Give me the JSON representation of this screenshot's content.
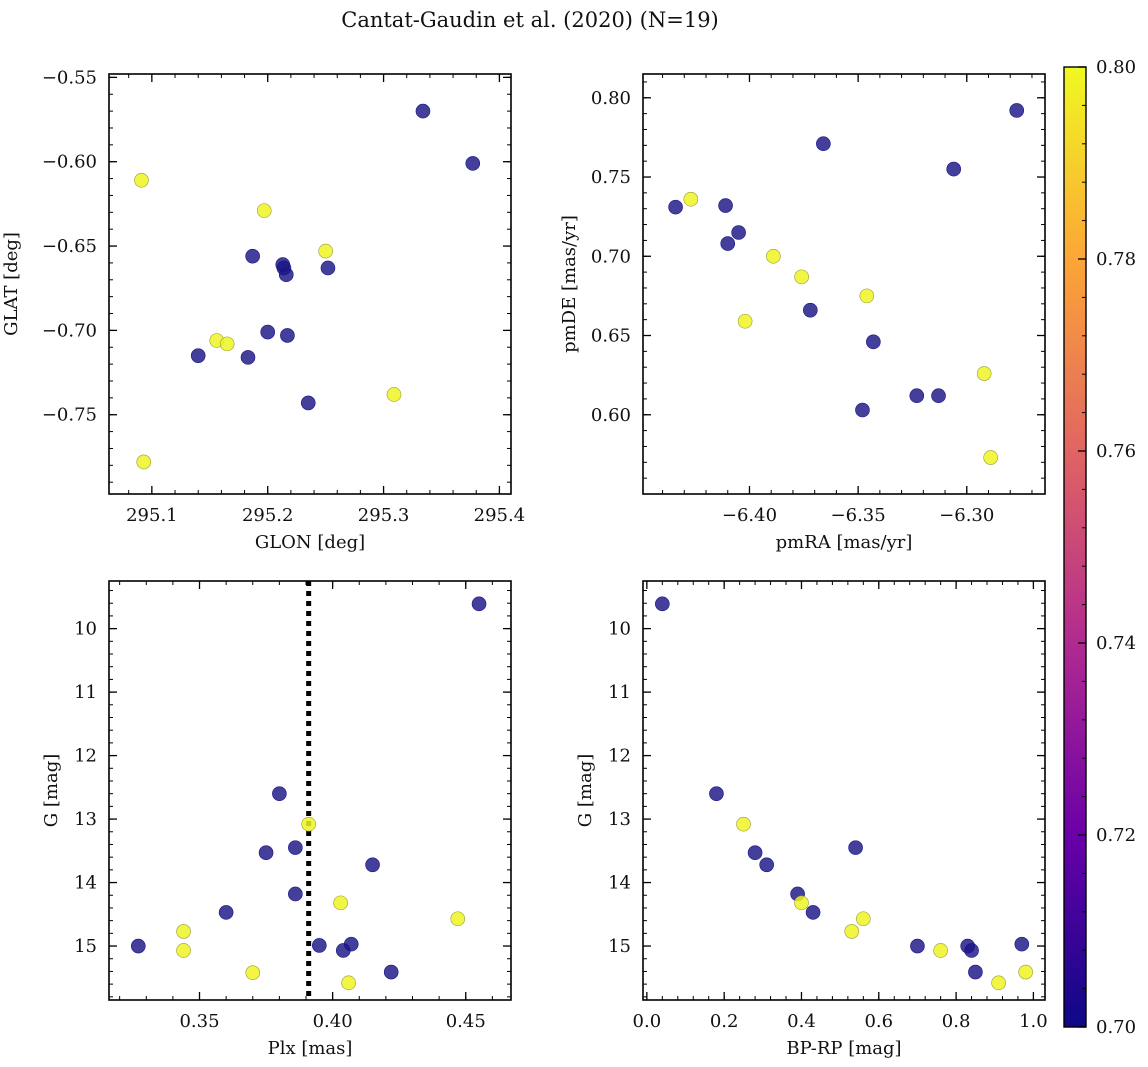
{
  "figure": {
    "title": "Cantat-Gaudin et al. (2020) (N=19)",
    "colorbar": {
      "min": 0.7,
      "max": 0.8,
      "ticks": [
        0.7,
        0.72,
        0.74,
        0.76,
        0.78,
        0.8
      ],
      "tick_labels": [
        "0.70",
        "0.72",
        "0.74",
        "0.76",
        "0.78",
        "0.80"
      ],
      "colormap": "plasma",
      "stops": [
        "#0d0887",
        "#6a00a8",
        "#b12a90",
        "#e16462",
        "#fca636",
        "#f0f921"
      ]
    },
    "marker_colors": {
      "low": "#1a1585",
      "high": "#eff523"
    },
    "vline_color": "#000000"
  },
  "chart_data": [
    {
      "type": "scatter",
      "name": "glon-glat",
      "xlabel": "GLON [deg]",
      "ylabel": "GLAT [deg]",
      "xlim": [
        295.063,
        295.41
      ],
      "ylim": [
        -0.797,
        -0.548
      ],
      "y_inverted": false,
      "xticks": [
        295.1,
        295.2,
        295.3,
        295.4
      ],
      "xtick_labels": [
        "295.1",
        "295.2",
        "295.3",
        "295.4"
      ],
      "yticks": [
        -0.75,
        -0.7,
        -0.65,
        -0.6,
        -0.55
      ],
      "ytick_labels": [
        "−0.75",
        "−0.70",
        "−0.65",
        "−0.60",
        "−0.55"
      ],
      "points": [
        {
          "x": 295.091,
          "y": -0.611,
          "c": 0.8
        },
        {
          "x": 295.093,
          "y": -0.778,
          "c": 0.8
        },
        {
          "x": 295.14,
          "y": -0.715,
          "c": 0.7
        },
        {
          "x": 295.156,
          "y": -0.706,
          "c": 0.8
        },
        {
          "x": 295.165,
          "y": -0.708,
          "c": 0.8
        },
        {
          "x": 295.183,
          "y": -0.716,
          "c": 0.7
        },
        {
          "x": 295.187,
          "y": -0.656,
          "c": 0.7
        },
        {
          "x": 295.197,
          "y": -0.629,
          "c": 0.8
        },
        {
          "x": 295.2,
          "y": -0.701,
          "c": 0.7
        },
        {
          "x": 295.213,
          "y": -0.661,
          "c": 0.7
        },
        {
          "x": 295.214,
          "y": -0.663,
          "c": 0.7
        },
        {
          "x": 295.216,
          "y": -0.667,
          "c": 0.7
        },
        {
          "x": 295.217,
          "y": -0.703,
          "c": 0.7
        },
        {
          "x": 295.235,
          "y": -0.743,
          "c": 0.7
        },
        {
          "x": 295.25,
          "y": -0.653,
          "c": 0.8
        },
        {
          "x": 295.252,
          "y": -0.663,
          "c": 0.7
        },
        {
          "x": 295.309,
          "y": -0.738,
          "c": 0.8
        },
        {
          "x": 295.334,
          "y": -0.57,
          "c": 0.7
        },
        {
          "x": 295.377,
          "y": -0.601,
          "c": 0.7
        }
      ]
    },
    {
      "type": "scatter",
      "name": "pmra-pmde",
      "xlabel": "pmRA [mas/yr]",
      "ylabel": "pmDE [mas/yr]",
      "xlim": [
        -6.449,
        -6.264
      ],
      "ylim": [
        0.55,
        0.815
      ],
      "y_inverted": false,
      "xticks": [
        -6.4,
        -6.35,
        -6.3
      ],
      "xtick_labels": [
        "−6.40",
        "−6.35",
        "−6.30"
      ],
      "yticks": [
        0.6,
        0.65,
        0.7,
        0.75,
        0.8
      ],
      "ytick_labels": [
        "0.60",
        "0.65",
        "0.70",
        "0.75",
        "0.80"
      ],
      "points": [
        {
          "x": -6.434,
          "y": 0.731,
          "c": 0.7
        },
        {
          "x": -6.427,
          "y": 0.736,
          "c": 0.8
        },
        {
          "x": -6.411,
          "y": 0.732,
          "c": 0.7
        },
        {
          "x": -6.41,
          "y": 0.708,
          "c": 0.7
        },
        {
          "x": -6.405,
          "y": 0.715,
          "c": 0.7
        },
        {
          "x": -6.402,
          "y": 0.659,
          "c": 0.8
        },
        {
          "x": -6.389,
          "y": 0.7,
          "c": 0.8
        },
        {
          "x": -6.376,
          "y": 0.687,
          "c": 0.8
        },
        {
          "x": -6.372,
          "y": 0.666,
          "c": 0.7
        },
        {
          "x": -6.366,
          "y": 0.771,
          "c": 0.7
        },
        {
          "x": -6.348,
          "y": 0.603,
          "c": 0.7
        },
        {
          "x": -6.346,
          "y": 0.675,
          "c": 0.8
        },
        {
          "x": -6.343,
          "y": 0.646,
          "c": 0.7
        },
        {
          "x": -6.323,
          "y": 0.612,
          "c": 0.7
        },
        {
          "x": -6.313,
          "y": 0.612,
          "c": 0.7
        },
        {
          "x": -6.306,
          "y": 0.755,
          "c": 0.7
        },
        {
          "x": -6.292,
          "y": 0.626,
          "c": 0.8
        },
        {
          "x": -6.289,
          "y": 0.573,
          "c": 0.8
        },
        {
          "x": -6.277,
          "y": 0.792,
          "c": 0.7
        }
      ]
    },
    {
      "type": "scatter",
      "name": "plx-g",
      "xlabel": "Plx [mas]",
      "ylabel": "G [mag]",
      "xlim": [
        0.316,
        0.467
      ],
      "ylim": [
        15.85,
        9.25
      ],
      "y_inverted": true,
      "xticks": [
        0.35,
        0.4,
        0.45
      ],
      "xtick_labels": [
        "0.35",
        "0.40",
        "0.45"
      ],
      "yticks": [
        10,
        11,
        12,
        13,
        14,
        15
      ],
      "ytick_labels": [
        "10",
        "11",
        "12",
        "13",
        "14",
        "15"
      ],
      "vline_x": 0.391,
      "points": [
        {
          "x": 0.327,
          "y": 15.0,
          "c": 0.7
        },
        {
          "x": 0.344,
          "y": 14.77,
          "c": 0.8
        },
        {
          "x": 0.344,
          "y": 15.07,
          "c": 0.8
        },
        {
          "x": 0.36,
          "y": 14.47,
          "c": 0.7
        },
        {
          "x": 0.37,
          "y": 15.42,
          "c": 0.8
        },
        {
          "x": 0.375,
          "y": 13.53,
          "c": 0.7
        },
        {
          "x": 0.38,
          "y": 12.6,
          "c": 0.7
        },
        {
          "x": 0.386,
          "y": 13.45,
          "c": 0.7
        },
        {
          "x": 0.386,
          "y": 14.18,
          "c": 0.7
        },
        {
          "x": 0.391,
          "y": 13.08,
          "c": 0.8
        },
        {
          "x": 0.395,
          "y": 14.99,
          "c": 0.7
        },
        {
          "x": 0.403,
          "y": 14.32,
          "c": 0.8
        },
        {
          "x": 0.404,
          "y": 15.07,
          "c": 0.7
        },
        {
          "x": 0.406,
          "y": 15.58,
          "c": 0.8
        },
        {
          "x": 0.407,
          "y": 14.97,
          "c": 0.7
        },
        {
          "x": 0.415,
          "y": 13.72,
          "c": 0.7
        },
        {
          "x": 0.422,
          "y": 15.41,
          "c": 0.7
        },
        {
          "x": 0.447,
          "y": 14.57,
          "c": 0.8
        },
        {
          "x": 0.455,
          "y": 9.61,
          "c": 0.7
        }
      ]
    },
    {
      "type": "scatter",
      "name": "bprp-g",
      "xlabel": "BP-RP [mag]",
      "ylabel": "G [mag]",
      "xlim": [
        -0.01,
        1.03
      ],
      "ylim": [
        15.85,
        9.25
      ],
      "y_inverted": true,
      "xticks": [
        0.0,
        0.2,
        0.4,
        0.6,
        0.8,
        1.0
      ],
      "xtick_labels": [
        "0.0",
        "0.2",
        "0.4",
        "0.6",
        "0.8",
        "1.0"
      ],
      "yticks": [
        10,
        11,
        12,
        13,
        14,
        15
      ],
      "ytick_labels": [
        "10",
        "11",
        "12",
        "13",
        "14",
        "15"
      ],
      "points": [
        {
          "x": 0.04,
          "y": 9.61,
          "c": 0.7
        },
        {
          "x": 0.18,
          "y": 12.6,
          "c": 0.7
        },
        {
          "x": 0.25,
          "y": 13.08,
          "c": 0.8
        },
        {
          "x": 0.28,
          "y": 13.53,
          "c": 0.7
        },
        {
          "x": 0.31,
          "y": 13.72,
          "c": 0.7
        },
        {
          "x": 0.39,
          "y": 14.18,
          "c": 0.7
        },
        {
          "x": 0.4,
          "y": 14.32,
          "c": 0.8
        },
        {
          "x": 0.43,
          "y": 14.47,
          "c": 0.7
        },
        {
          "x": 0.53,
          "y": 14.77,
          "c": 0.8
        },
        {
          "x": 0.54,
          "y": 13.45,
          "c": 0.7
        },
        {
          "x": 0.56,
          "y": 14.57,
          "c": 0.8
        },
        {
          "x": 0.7,
          "y": 15.0,
          "c": 0.7
        },
        {
          "x": 0.76,
          "y": 15.07,
          "c": 0.8
        },
        {
          "x": 0.83,
          "y": 15.0,
          "c": 0.7
        },
        {
          "x": 0.84,
          "y": 15.07,
          "c": 0.7
        },
        {
          "x": 0.85,
          "y": 15.41,
          "c": 0.7
        },
        {
          "x": 0.91,
          "y": 15.58,
          "c": 0.8
        },
        {
          "x": 0.97,
          "y": 14.97,
          "c": 0.7
        },
        {
          "x": 0.98,
          "y": 15.41,
          "c": 0.8
        }
      ]
    }
  ]
}
